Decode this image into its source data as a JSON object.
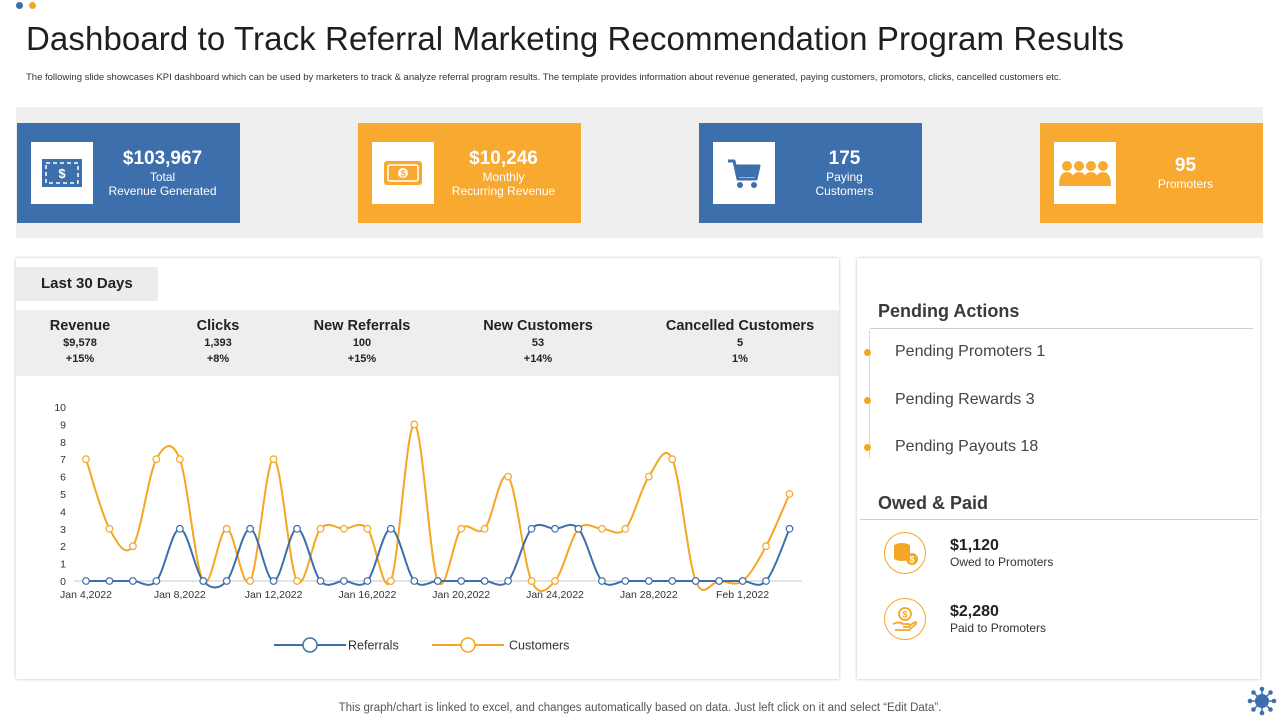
{
  "colors": {
    "blue": "#3d6fad",
    "orange": "#f8a930",
    "dot_blue": "#3d6fad",
    "dot_orange": "#f5a623"
  },
  "title": "Dashboard to Track Referral Marketing Recommendation Program Results",
  "subtitle": "The following slide showcases KPI dashboard which can be used by marketers to track & analyze referral program results. The template provides information about revenue generated, paying customers, promotors, clicks, cancelled customers etc.",
  "kpis": [
    {
      "icon": "dollar-bill-icon",
      "value": "$103,967",
      "line1": "Total",
      "line2": "Revenue Generated"
    },
    {
      "icon": "money-icon",
      "value": "$10,246",
      "line1": "Monthly",
      "line2": "Recurring Revenue"
    },
    {
      "icon": "cart-icon",
      "value": "175",
      "line1": "Paying",
      "line2": "Customers"
    },
    {
      "icon": "group-icon",
      "value": "95",
      "line1": "Promoters",
      "line2": ""
    }
  ],
  "period_tab": "Last 30 Days",
  "stats": [
    {
      "label": "Revenue",
      "value": "$9,578",
      "change": "+15%"
    },
    {
      "label": "Clicks",
      "value": "1,393",
      "change": "+8%"
    },
    {
      "label": "New Referrals",
      "value": "100",
      "change": "+15%"
    },
    {
      "label": "New Customers",
      "value": "53",
      "change": "+14%"
    },
    {
      "label": "Cancelled Customers",
      "value": "5",
      "change": "1%"
    }
  ],
  "chart_data": {
    "type": "line",
    "x_tick_labels": [
      "Jan 4,2022",
      "Jan 8,2022",
      "Jan 12,2022",
      "Jan 16,2022",
      "Jan 20,2022",
      "Jan 24,2022",
      "Jan 28,2022",
      "Feb 1,2022"
    ],
    "x": [
      "Jan 4",
      "Jan 5",
      "Jan 6",
      "Jan 7",
      "Jan 8",
      "Jan 9",
      "Jan 10",
      "Jan 11",
      "Jan 12",
      "Jan 13",
      "Jan 14",
      "Jan 15",
      "Jan 16",
      "Jan 17",
      "Jan 18",
      "Jan 19",
      "Jan 20",
      "Jan 21",
      "Jan 22",
      "Jan 23",
      "Jan 24",
      "Jan 25",
      "Jan 26",
      "Jan 27",
      "Jan 28",
      "Jan 29",
      "Jan 30",
      "Jan 31",
      "Feb 1",
      "Feb 2",
      "Feb 3"
    ],
    "series": [
      {
        "name": "Referrals",
        "color": "#3d6fad",
        "values": [
          0,
          0,
          0,
          0,
          3,
          0,
          0,
          3,
          0,
          3,
          0,
          0,
          0,
          3,
          0,
          0,
          0,
          0,
          0,
          3,
          3,
          3,
          0,
          0,
          0,
          0,
          0,
          0,
          0,
          0,
          3
        ]
      },
      {
        "name": "Customers",
        "color": "#f5a623",
        "values": [
          7,
          3,
          2,
          7,
          7,
          0,
          3,
          0,
          7,
          0,
          3,
          3,
          3,
          0,
          9,
          0,
          3,
          3,
          6,
          0,
          0,
          3,
          3,
          3,
          6,
          7,
          0,
          0,
          0,
          2,
          5
        ]
      }
    ],
    "ylim": [
      0,
      10
    ],
    "yticks": [
      0,
      1,
      2,
      3,
      4,
      5,
      6,
      7,
      8,
      9,
      10
    ],
    "legend_position": "bottom",
    "grid": false
  },
  "pending_actions": {
    "title": "Pending Actions",
    "items": [
      "Pending Promoters 1",
      "Pending Rewards 3",
      "Pending Payouts 18"
    ]
  },
  "owed_paid": {
    "title": "Owed & Paid",
    "items": [
      {
        "icon": "coins-icon",
        "value": "$1,120",
        "label": "Owed to Promoters"
      },
      {
        "icon": "hand-coin-icon",
        "value": "$2,280",
        "label": "Paid to Promoters"
      }
    ]
  },
  "footer": "This graph/chart is linked to excel,  and changes automatically based on data. Just left click on it and select “Edit Data”."
}
